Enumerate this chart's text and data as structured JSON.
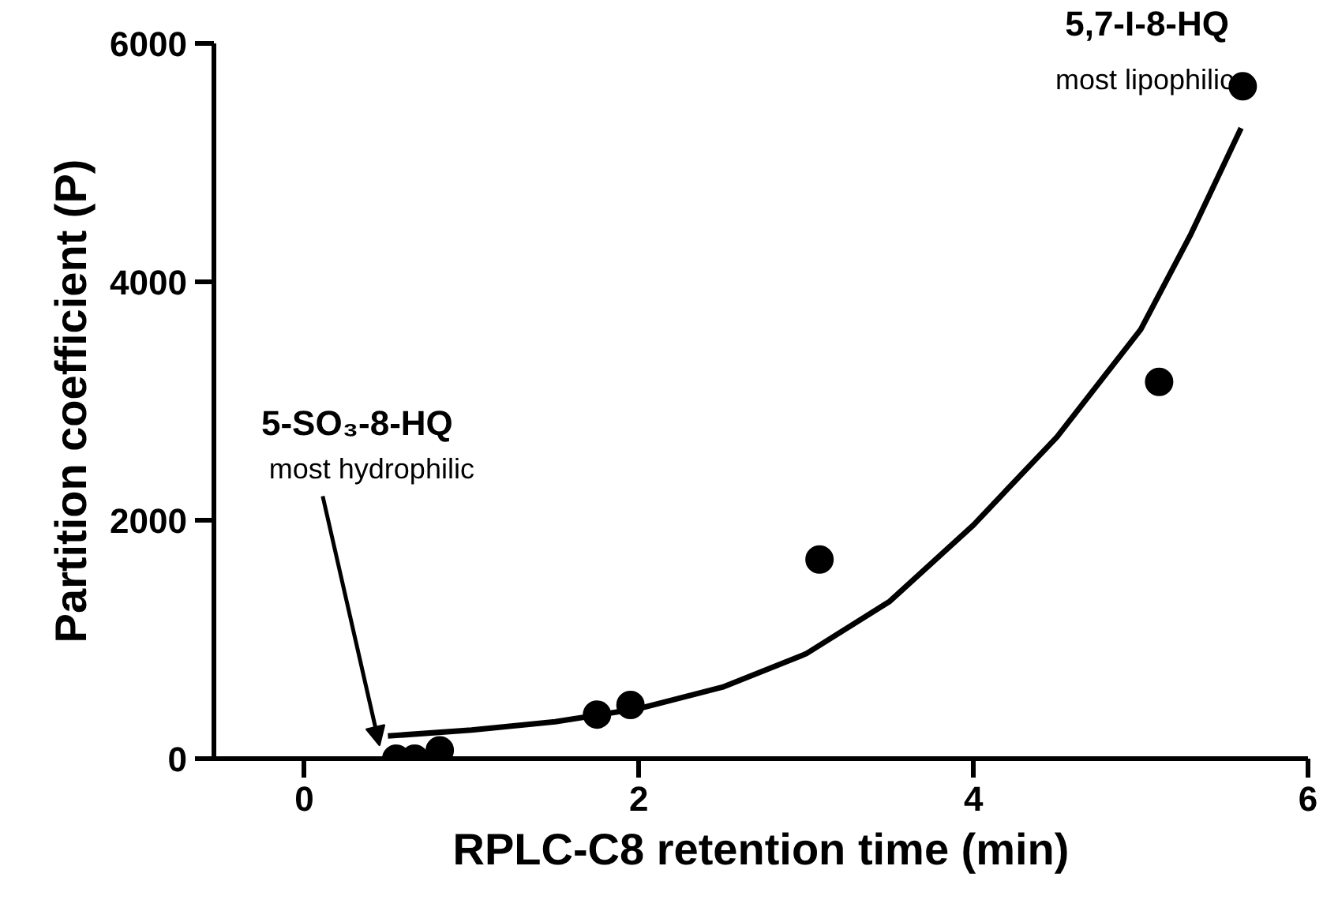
{
  "chart_data": {
    "type": "scatter",
    "xlabel": "RPLC-C8 retention time (min)",
    "ylabel": "Partition coefficient (P)",
    "xlim": [
      -0.54,
      6.0
    ],
    "ylim": [
      0,
      6000
    ],
    "xticks": [
      0,
      2,
      4,
      6
    ],
    "yticks": [
      0,
      2000,
      4000,
      6000
    ],
    "series": [
      {
        "marker": "circle",
        "color": "#000000",
        "x": [
          0.55,
          0.66,
          0.81,
          1.75,
          1.95,
          3.08,
          5.11,
          5.61
        ],
        "values": [
          0,
          0,
          70,
          370,
          450,
          1670,
          3160,
          5640
        ]
      },
      {
        "type": "line",
        "color": "#000000",
        "line_style": "solid",
        "x": [
          0.5,
          1.0,
          1.5,
          2.0,
          2.5,
          3.0,
          3.5,
          4.0,
          4.5,
          5.0,
          5.3,
          5.6
        ],
        "values": [
          190,
          240,
          310,
          420,
          600,
          880,
          1320,
          1960,
          2700,
          3600,
          4400,
          5290
        ]
      }
    ],
    "annotations": [
      "5,7-I-8-HQ",
      "most lipophilic",
      "5-SO₃-8-HQ",
      {
        "text": "most hydrophilic",
        "x": 0.45,
        "y": 110
      }
    ]
  }
}
